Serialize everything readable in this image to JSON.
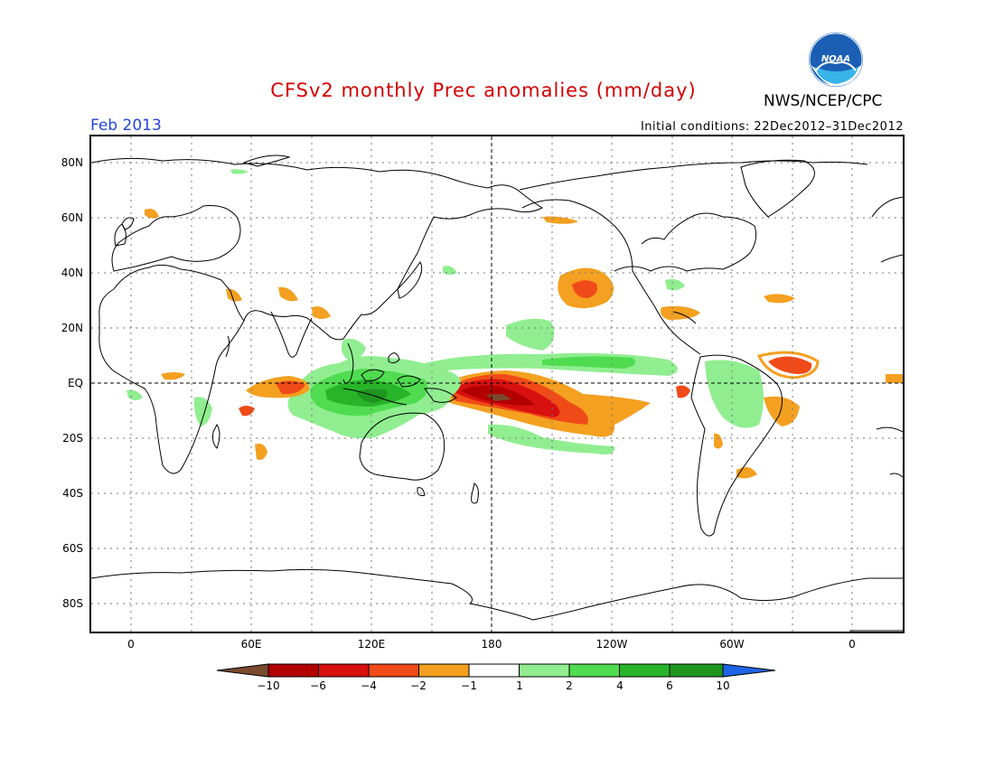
{
  "header": {
    "title": "CFSv2 monthly Prec anomalies (mm/day)",
    "agency": "NWS/NCEP/CPC",
    "logo_text": "NOAA",
    "period": "Feb 2013",
    "initial_conditions": "Initial conditions: 22Dec2012–31Dec2012"
  },
  "map": {
    "lat_labels": [
      "80N",
      "60N",
      "40N",
      "20N",
      "EQ",
      "20S",
      "40S",
      "60S",
      "80S"
    ],
    "lon_labels": [
      "0",
      "60E",
      "120E",
      "180",
      "120W",
      "60W",
      "0"
    ]
  },
  "colorbar": {
    "labels": [
      "−10",
      "−6",
      "−4",
      "−2",
      "−1",
      "1",
      "2",
      "4",
      "6",
      "10"
    ],
    "colors": [
      "#7a4a2e",
      "#b20000",
      "#d81010",
      "#f04a18",
      "#f4a020",
      "#ffffff",
      "#90ee90",
      "#50dc50",
      "#28b428",
      "#1e961e",
      "#1e64e6"
    ]
  },
  "colors": {
    "title": "#d40000",
    "period": "#2244dd"
  }
}
